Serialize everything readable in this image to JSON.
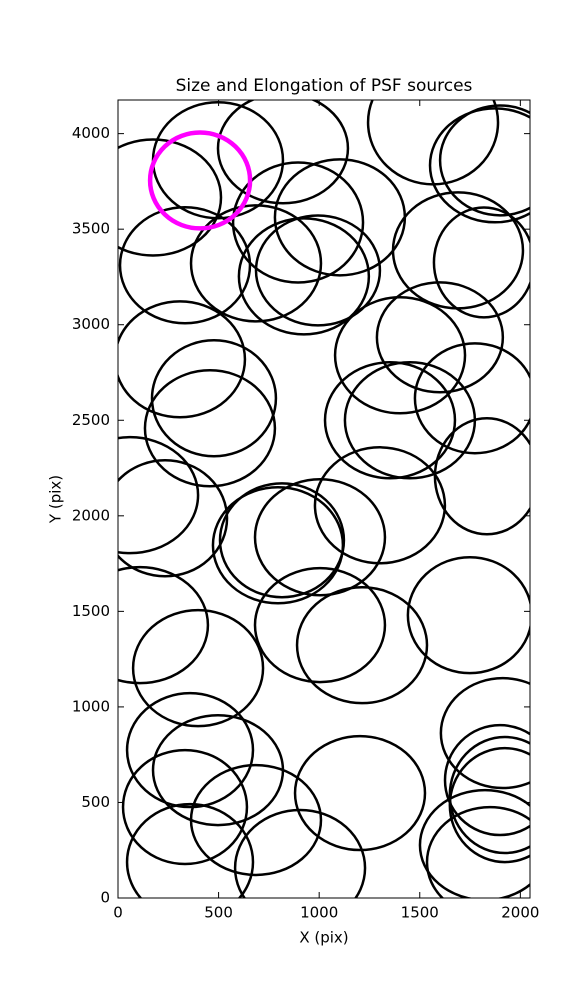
{
  "chart_data": {
    "type": "ellipse",
    "title": "Size and Elongation of PSF sources",
    "xlabel": "X (pix)",
    "ylabel": "Y (pix)",
    "xlim": [
      0,
      2048
    ],
    "ylim": [
      0,
      4176
    ],
    "xticks": [
      0,
      500,
      1000,
      1500,
      2000
    ],
    "yticks": [
      0,
      500,
      1000,
      1500,
      2000,
      2500,
      3000,
      3500,
      4000
    ],
    "color": "#000000",
    "x": [
      174,
      497,
      820,
      1566,
      1874,
      1899,
      895,
      1103,
      333,
      686,
      924,
      994,
      1690,
      1819,
      308,
      477,
      1402,
      1600,
      1774,
      1352,
      1451,
      60,
      234,
      457,
      795,
      815,
      1004,
      1302,
      1834,
      1749,
      109,
      398,
      1004,
      1213,
      358,
      497,
      333,
      358,
      686,
      905,
      1203,
      1913,
      1824,
      1849,
      1923,
      1923,
      1899
    ],
    "y": [
      3666,
      3861,
      3923,
      4059,
      3834,
      3860,
      3535,
      3562,
      3311,
      3321,
      3253,
      3284,
      3389,
      3326,
      2819,
      2615,
      2840,
      2934,
      2615,
      2500,
      2500,
      2108,
      1987,
      2458,
      1846,
      1872,
      1888,
      2055,
      2207,
      1480,
      1428,
      1203,
      1428,
      1323,
      774,
      669,
      476,
      188,
      408,
      157,
      549,
      863,
      277,
      188,
      486,
      539,
      617
    ],
    "width": [
      676,
      646,
      646,
      646,
      646,
      596,
      646,
      646,
      646,
      646,
      646,
      616,
      646,
      497,
      646,
      616,
      646,
      626,
      596,
      646,
      646,
      676,
      616,
      646,
      646,
      616,
      646,
      646,
      517,
      616,
      676,
      646,
      646,
      646,
      626,
      646,
      616,
      626,
      646,
      646,
      646,
      616,
      646,
      626,
      547,
      547,
      547
    ],
    "height": [
      607,
      607,
      575,
      649,
      596,
      575,
      628,
      607,
      607,
      607,
      607,
      575,
      607,
      575,
      607,
      607,
      607,
      575,
      575,
      607,
      607,
      607,
      607,
      607,
      607,
      596,
      607,
      607,
      607,
      607,
      607,
      607,
      596,
      607,
      596,
      575,
      596,
      607,
      575,
      607,
      596,
      575,
      575,
      575,
      596,
      607,
      575
    ],
    "highlight": {
      "x": 408,
      "y": 3755,
      "width": 497,
      "height": 502,
      "color": "#ff00ff"
    }
  }
}
